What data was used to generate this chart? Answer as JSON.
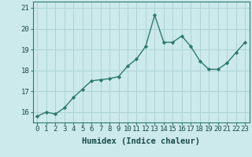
{
  "x": [
    0,
    1,
    2,
    3,
    4,
    5,
    6,
    7,
    8,
    9,
    10,
    11,
    12,
    13,
    14,
    15,
    16,
    17,
    18,
    19,
    20,
    21,
    22,
    23
  ],
  "y": [
    15.8,
    16.0,
    15.9,
    16.2,
    16.7,
    17.1,
    17.5,
    17.55,
    17.6,
    17.7,
    18.2,
    18.55,
    19.15,
    20.65,
    19.35,
    19.35,
    19.65,
    19.15,
    18.45,
    18.05,
    18.05,
    18.35,
    18.85,
    19.35
  ],
  "line_color": "#2d7a6e",
  "marker": "D",
  "marker_size": 2.2,
  "bg_color": "#cce9eb",
  "grid_color": "#aed4d6",
  "xlabel": "Humidex (Indice chaleur)",
  "xlabel_fontsize": 7.5,
  "ylim": [
    15.5,
    21.3
  ],
  "xlim": [
    -0.5,
    23.5
  ],
  "yticks": [
    16,
    17,
    18,
    19,
    20,
    21
  ],
  "xticks": [
    0,
    1,
    2,
    3,
    4,
    5,
    6,
    7,
    8,
    9,
    10,
    11,
    12,
    13,
    14,
    15,
    16,
    17,
    18,
    19,
    20,
    21,
    22,
    23
  ],
  "tick_fontsize": 6.5,
  "line_width": 1.0
}
